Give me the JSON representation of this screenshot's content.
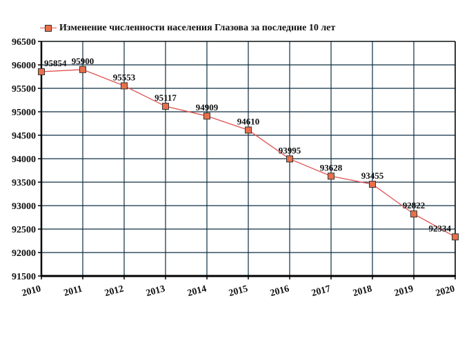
{
  "chart_data": {
    "type": "line",
    "title": "Изменение численности населения Глазова за последние 10 лет",
    "xlabel": "",
    "ylabel": "",
    "categories": [
      "2010",
      "2011",
      "2012",
      "2013",
      "2014",
      "2015",
      "2016",
      "2017",
      "2018",
      "2019",
      "2020"
    ],
    "series": [
      {
        "name": "Изменение численности населения Глазова за последние 10 лет",
        "values": [
          95854,
          95900,
          95553,
          95117,
          94909,
          94610,
          93995,
          93628,
          93455,
          92822,
          92334
        ],
        "color": "#e05050",
        "marker_color": "#e8704a"
      }
    ],
    "ylim": [
      91500,
      96500
    ],
    "yticks": [
      91500,
      92000,
      92500,
      93000,
      93500,
      94000,
      94500,
      95000,
      95500,
      96000,
      96500
    ],
    "grid": true,
    "grid_color": "#0d2c40",
    "legend_position": "top-left",
    "data_labels": true
  },
  "legend": {
    "label": "Изменение численности населения Глазова за последние 10 лет"
  }
}
